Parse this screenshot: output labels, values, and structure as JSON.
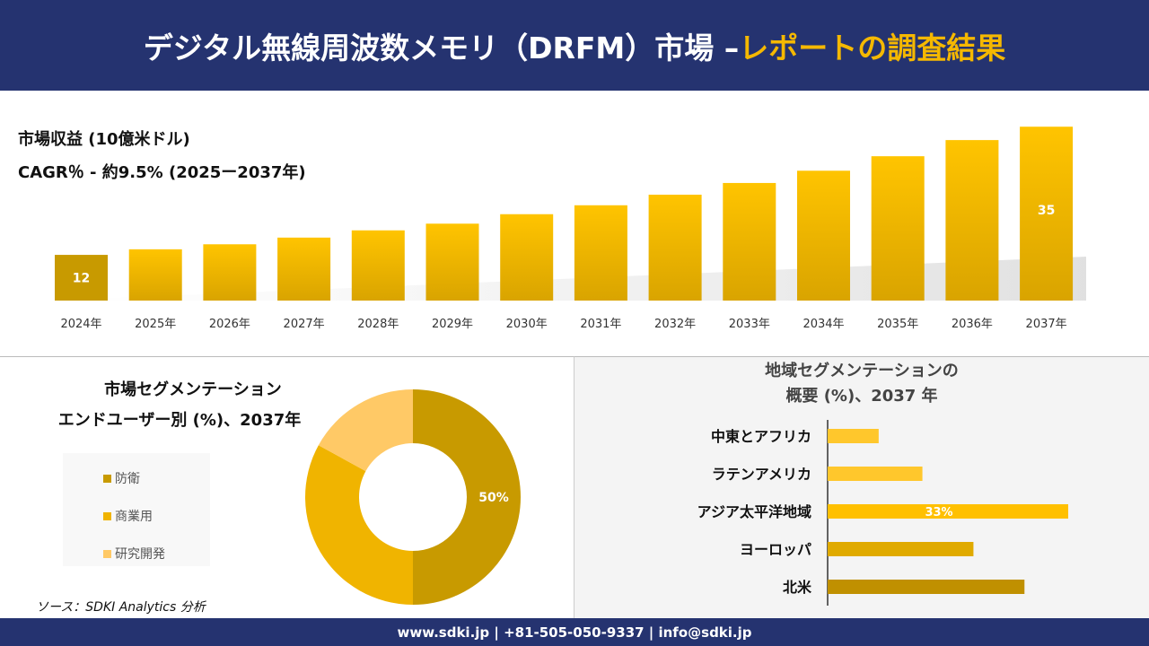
{
  "header": {
    "title_main": "デジタル無線周波数メモリ（DRFM）市場 –",
    "title_accent": "レポートの調査結果"
  },
  "revenue": {
    "label": "市場収益 (10億米ドル)",
    "cagr": "CAGR％ - 約9.5% (2025ー2037年)"
  },
  "chart_data": [
    {
      "type": "bar",
      "categories": [
        "2024年",
        "2025年",
        "2026年",
        "2027年",
        "2028年",
        "2029年",
        "2030年",
        "2031年",
        "2032年",
        "2033年",
        "2034年",
        "2035年",
        "2036年",
        "2037年"
      ],
      "values": [
        12,
        13,
        13.9,
        15.1,
        16.4,
        17.6,
        19.3,
        20.9,
        22.8,
        24.9,
        27.1,
        29.7,
        32.6,
        35
      ],
      "data_labels": {
        "0": "12",
        "13": "35"
      },
      "grid": false,
      "colors": [
        "#C89A00",
        "#F5BE00"
      ]
    },
    {
      "type": "pie",
      "title": "市場セグメンテーション\nエンドユーザー別 (%)、2037年",
      "title_lines": [
        "市場セグメンテーション",
        "エンドユーザー別 (%)、2037年"
      ],
      "slices": [
        {
          "label": "防衛",
          "value": 50,
          "color": "#C89A00",
          "data_label": "50%"
        },
        {
          "label": "商業用",
          "value": 33,
          "color": "#F0B400"
        },
        {
          "label": "研究開発",
          "value": 17,
          "color": "#FFC966"
        }
      ],
      "legend": "left"
    },
    {
      "type": "bar",
      "orientation": "horizontal",
      "title_lines": [
        "地域セグメンテーションの",
        "概要 (%)、2037 年"
      ],
      "categories": [
        "中東とアフリカ",
        "ラテンアメリカ",
        "アジア太平洋地域",
        "ヨーロッパ",
        "北米"
      ],
      "values": [
        7,
        13,
        33,
        20,
        27
      ],
      "data_labels": {
        "2": "33%"
      },
      "colors": [
        "#FFC72C",
        "#FFC72C",
        "#FFC000",
        "#E0AA00",
        "#C09000"
      ]
    }
  ],
  "source": "ソース：SDKI Analytics 分析",
  "footer": "www.sdki.jp | +81-505-050-9337 | info@sdki.jp"
}
